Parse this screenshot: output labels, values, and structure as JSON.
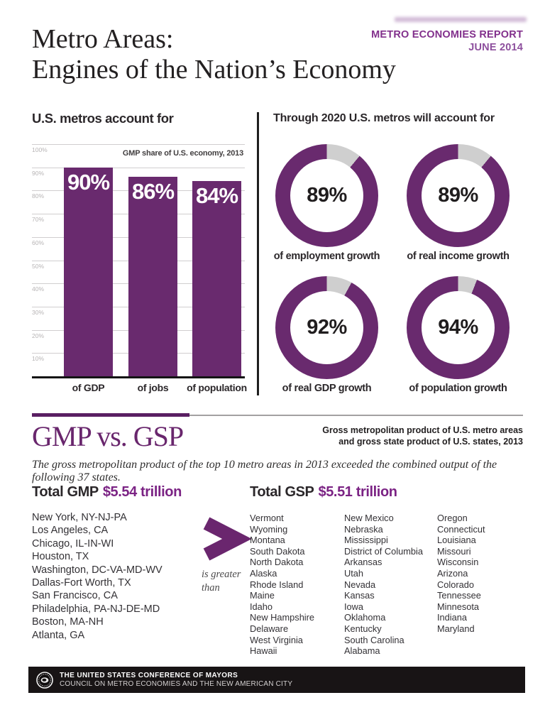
{
  "header": {
    "report_label": "METRO ECONOMIES REPORT",
    "report_date": "JUNE 2014",
    "title_line1": "Metro Areas:",
    "title_line2": "Engines of the Nation’s Economy"
  },
  "chart_data": [
    {
      "type": "bar",
      "title": "U.S. metros account for",
      "subtitle": "GMP share of U.S. economy, 2013",
      "categories": [
        "of GDP",
        "of jobs",
        "of population"
      ],
      "values": [
        90,
        86,
        84
      ],
      "value_labels": [
        "90%",
        "86%",
        "84%"
      ],
      "xlabel": "",
      "ylabel": "",
      "ylim": [
        0,
        100
      ],
      "yticks": [
        "100%",
        "90%",
        "80%",
        "70%",
        "60%",
        "50%",
        "40%",
        "30%",
        "20%",
        "10%"
      ],
      "grid": true,
      "legend": "none",
      "bar_color": "#692a6e"
    },
    {
      "type": "pie",
      "subtype": "donut",
      "title": "Through 2020 U.S. metros will account for",
      "ring_color": "#692a6e",
      "remainder_color": "#cfcfcf",
      "donuts": [
        {
          "value": 89,
          "label_text": "89%",
          "caption": "of employment growth"
        },
        {
          "value": 89,
          "label_text": "89%",
          "caption": "of real income growth"
        },
        {
          "value": 92,
          "label_text": "92%",
          "caption": "of real GDP growth"
        },
        {
          "value": 94,
          "label_text": "94%",
          "caption": "of population growth"
        }
      ]
    }
  ],
  "gmp_section": {
    "heading": "GMP vs. GSP",
    "subtitle_line1": "Gross metropolitan product of U.S. metro areas",
    "subtitle_line2": "and gross state product of U.S. states, 2013",
    "intro": "The gross metropolitan product of the top 10 metro areas in 2013 exceeded the combined output of the following 37 states.",
    "gmp_label": "Total GMP",
    "gmp_value": "$5.54 trillion",
    "metros": [
      "New York, NY-NJ-PA",
      "Los Angeles, CA",
      "Chicago, IL-IN-WI",
      "Houston, TX",
      "Washington, DC-VA-MD-WV",
      "Dallas-Fort Worth, TX",
      "San Francisco, CA",
      "Philadelphia, PA-NJ-DE-MD",
      "Boston, MA-NH",
      "Atlanta, GA"
    ],
    "comparator_symbol": ">",
    "comparator_caption_line1": "is greater",
    "comparator_caption_line2": "than",
    "gsp_label": "Total GSP",
    "gsp_value": "$5.51 trillion",
    "state_columns": [
      [
        "Vermont",
        "Wyoming",
        "Montana",
        "South Dakota",
        "North Dakota",
        "Alaska",
        "Rhode Island",
        "Maine",
        "Idaho",
        "New Hampshire",
        "Delaware",
        "West Virginia",
        "Hawaii"
      ],
      [
        "New Mexico",
        "Nebraska",
        "Mississippi",
        "District of Columbia",
        "Arkansas",
        "Utah",
        "Nevada",
        "Kansas",
        "Iowa",
        "Oklahoma",
        "Kentucky",
        "South Carolina",
        "Alabama"
      ],
      [
        "Oregon",
        "Connecticut",
        "Louisiana",
        "Missouri",
        "Wisconsin",
        "Arizona",
        "Colorado",
        "Tennessee",
        "Minnesota",
        "Indiana",
        "Maryland"
      ]
    ]
  },
  "footer": {
    "line1": "THE UNITED STATES CONFERENCE OF MAYORS",
    "line2": "COUNCIL ON METRO ECONOMIES AND THE NEW AMERICAN CITY"
  },
  "colors": {
    "bar_purple": "#692a6e",
    "accent_purple": "#82308c",
    "value_purple": "#7b2384",
    "donut_remainder": "#cfcfcf",
    "footer_black": "#181415"
  }
}
